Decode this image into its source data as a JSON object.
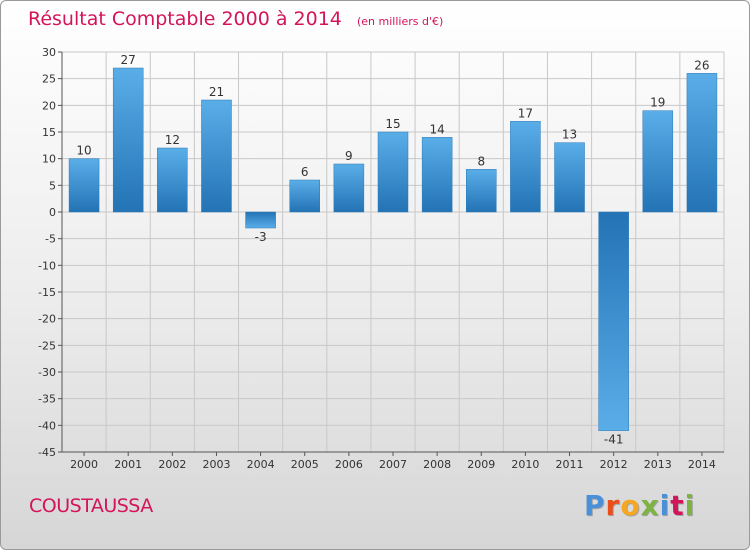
{
  "title": "Résultat Comptable 2000 à 2014",
  "unit_note": "(en milliers d'€)",
  "commune": "COUSTAUSSA",
  "logo": {
    "letters": [
      "P",
      "r",
      "o",
      "x",
      "i",
      "t",
      "i"
    ],
    "colors": [
      "#4a90d9",
      "#e94e1b",
      "#f5a623",
      "#7cb342",
      "#4a90d9",
      "#d4145a",
      "#7cb342"
    ]
  },
  "chart_data": {
    "type": "bar",
    "title": "Résultat Comptable 2000 à 2014",
    "subtitle": "(en milliers d'€)",
    "xlabel": "",
    "ylabel": "",
    "categories": [
      "2000",
      "2001",
      "2002",
      "2003",
      "2004",
      "2005",
      "2006",
      "2007",
      "2008",
      "2009",
      "2010",
      "2011",
      "2012",
      "2013",
      "2014"
    ],
    "values": [
      10,
      27,
      12,
      21,
      -3,
      6,
      9,
      15,
      14,
      8,
      17,
      13,
      -41,
      19,
      26
    ],
    "ylim": [
      -45,
      30
    ],
    "yticks": [
      30,
      25,
      20,
      15,
      10,
      5,
      0,
      -5,
      -10,
      -15,
      -20,
      -25,
      -30,
      -35,
      -40,
      -45
    ],
    "grid": true,
    "bar_color_light": "#5aaee8",
    "bar_color_dark": "#2373b5"
  }
}
